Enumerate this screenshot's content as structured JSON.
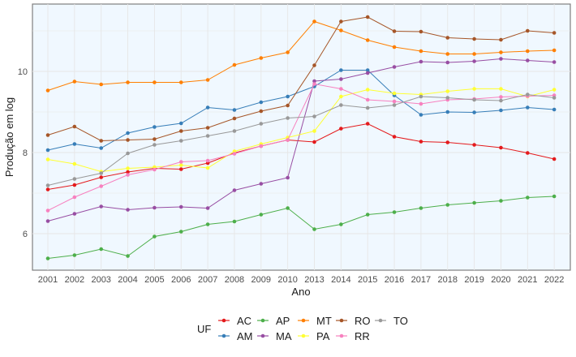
{
  "chart_data": {
    "type": "line",
    "title": "",
    "xlabel": "Ano",
    "ylabel": "Produção em log",
    "ylim": [
      5.1,
      11.66
    ],
    "yticks": [
      6,
      8,
      10
    ],
    "grid": true,
    "background": "#F0F8FF",
    "legend": {
      "title": "UF",
      "placement": "bottom"
    },
    "categories": [
      "2001",
      "2002",
      "2003",
      "2004",
      "2005",
      "2006",
      "2007",
      "2008",
      "2009",
      "2010",
      "2013",
      "2014",
      "2015",
      "2016",
      "2017",
      "2018",
      "2019",
      "2020",
      "2021",
      "2022"
    ],
    "series": [
      {
        "name": "AC",
        "color": "#E41A1C",
        "values": [
          7.09,
          7.2,
          7.39,
          7.52,
          7.61,
          7.59,
          7.74,
          7.99,
          8.16,
          8.31,
          8.26,
          8.59,
          8.71,
          8.39,
          8.27,
          8.25,
          8.19,
          8.12,
          7.99,
          7.84
        ]
      },
      {
        "name": "AM",
        "color": "#377EB8",
        "values": [
          8.06,
          8.21,
          8.11,
          8.48,
          8.63,
          8.72,
          9.11,
          9.05,
          9.24,
          9.38,
          9.63,
          10.03,
          10.03,
          9.41,
          8.93,
          9.0,
          8.99,
          9.04,
          9.11,
          9.06
        ]
      },
      {
        "name": "AP",
        "color": "#4DAF4A",
        "values": [
          5.39,
          5.47,
          5.62,
          5.45,
          5.93,
          6.05,
          6.23,
          6.3,
          6.47,
          6.63,
          6.11,
          6.23,
          6.47,
          6.53,
          6.63,
          6.71,
          6.76,
          6.81,
          6.89,
          6.92
        ]
      },
      {
        "name": "MA",
        "color": "#984EA3",
        "values": [
          6.31,
          6.49,
          6.67,
          6.59,
          6.64,
          6.66,
          6.63,
          7.07,
          7.23,
          7.38,
          9.76,
          9.81,
          9.96,
          10.11,
          10.24,
          10.22,
          10.25,
          10.31,
          10.27,
          10.23
        ]
      },
      {
        "name": "MT",
        "color": "#FF7F00",
        "values": [
          9.53,
          9.75,
          9.68,
          9.73,
          9.73,
          9.73,
          9.79,
          10.16,
          10.33,
          10.47,
          11.23,
          11.01,
          10.77,
          10.6,
          10.5,
          10.43,
          10.43,
          10.47,
          10.5,
          10.52
        ]
      },
      {
        "name": "PA",
        "color": "#FFFF33",
        "values": [
          7.83,
          7.72,
          7.53,
          7.61,
          7.64,
          7.69,
          7.62,
          8.03,
          8.21,
          8.37,
          8.53,
          9.38,
          9.55,
          9.46,
          9.43,
          9.51,
          9.57,
          9.57,
          9.38,
          9.55
        ]
      },
      {
        "name": "RO",
        "color": "#A65628",
        "values": [
          8.43,
          8.64,
          8.29,
          8.31,
          8.33,
          8.53,
          8.61,
          8.84,
          9.02,
          9.16,
          10.15,
          11.23,
          11.34,
          10.99,
          10.98,
          10.83,
          10.8,
          10.78,
          11.0,
          10.95
        ]
      },
      {
        "name": "RR",
        "color": "#F781BF",
        "values": [
          6.57,
          6.9,
          7.17,
          7.45,
          7.58,
          7.77,
          7.8,
          7.97,
          8.16,
          8.31,
          9.69,
          9.57,
          9.3,
          9.26,
          9.2,
          9.3,
          9.32,
          9.37,
          9.39,
          9.41
        ]
      },
      {
        "name": "TO",
        "color": "#999999",
        "values": [
          7.19,
          7.35,
          7.49,
          7.98,
          8.19,
          8.29,
          8.41,
          8.53,
          8.71,
          8.85,
          8.89,
          9.17,
          9.1,
          9.17,
          9.38,
          9.35,
          9.3,
          9.28,
          9.43,
          9.35
        ]
      }
    ]
  }
}
